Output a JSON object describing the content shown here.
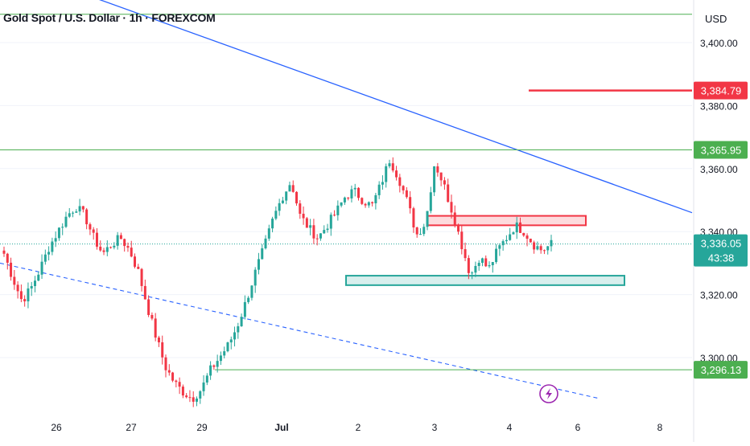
{
  "header": {
    "title": "Gold Spot / U.S. Dollar · 1h · FOREXCOM",
    "currency": "USD"
  },
  "colors": {
    "up": "#26a69a",
    "down": "#f23645",
    "trend": "#2962ff",
    "hline": "#4caf50",
    "red_level": "#f23645",
    "icon": "#9c27b0",
    "text": "#131722"
  },
  "icons": {
    "marker": "lightning-icon"
  },
  "chart_data": {
    "type": "candlestick",
    "ylim": [
      3287,
      3414
    ],
    "y_ticks": [
      {
        "value": 3400,
        "label": "3,400.00"
      },
      {
        "value": 3380,
        "label": "3,380.00"
      },
      {
        "value": 3360,
        "label": "3,360.00"
      },
      {
        "value": 3340,
        "label": "3,340.00"
      },
      {
        "value": 3320,
        "label": "3,320.00"
      },
      {
        "value": 3300,
        "label": "3,300.00"
      }
    ],
    "x_ticks": [
      "26",
      "27",
      "29",
      "Jul",
      "2",
      "3",
      "4",
      "6",
      "8"
    ],
    "current_price": {
      "value": 3336.05,
      "label": "3,336.05",
      "countdown": "43:38"
    },
    "levels": [
      {
        "value": 3384.79,
        "label": "3,384.79",
        "color": "red"
      },
      {
        "value": 3365.95,
        "label": "3,365.95",
        "color": "green"
      },
      {
        "value": 3296.13,
        "label": "3,296.13",
        "color": "green"
      },
      {
        "value": 3409,
        "label": "",
        "color": "green"
      }
    ],
    "zones": [
      {
        "color": "red",
        "low": 3342,
        "high": 3345
      },
      {
        "color": "green",
        "low": 3323,
        "high": 3326
      }
    ],
    "trendlines": [
      {
        "style": "solid",
        "from": 3425,
        "to": 3346
      },
      {
        "style": "dashed",
        "from": 3330,
        "to": 3287
      }
    ],
    "ohlc_close_path": [
      3333,
      3325,
      3318,
      3322,
      3328,
      3335,
      3340,
      3345,
      3348,
      3345,
      3338,
      3333,
      3336,
      3338,
      3334,
      3327,
      3316,
      3306,
      3297,
      3292,
      3289,
      3287,
      3290,
      3296,
      3300,
      3304,
      3310,
      3318,
      3327,
      3335,
      3344,
      3351,
      3356,
      3345,
      3341,
      3338,
      3342,
      3346,
      3351,
      3353,
      3350,
      3348,
      3355,
      3363,
      3357,
      3349,
      3339,
      3343,
      3362,
      3355,
      3346,
      3336,
      3326,
      3332,
      3328,
      3334,
      3338,
      3342,
      3340,
      3336,
      3334,
      3336
    ]
  }
}
